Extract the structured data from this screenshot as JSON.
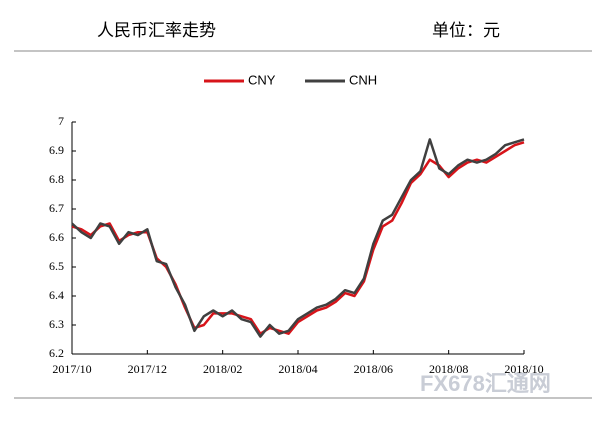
{
  "chart_data": {
    "type": "line",
    "title": "人民币汇率走势",
    "unit": "单位：元",
    "watermark": "FX678汇通网",
    "categories": [
      "2017/10",
      null,
      null,
      null,
      null,
      null,
      null,
      null,
      "2017/12",
      null,
      null,
      null,
      null,
      null,
      null,
      null,
      "2018/02",
      null,
      null,
      null,
      null,
      null,
      null,
      null,
      "2018/04",
      null,
      null,
      null,
      null,
      null,
      null,
      null,
      "2018/06",
      null,
      null,
      null,
      null,
      null,
      null,
      null,
      "2018/08",
      null,
      null,
      null,
      null,
      null,
      null,
      null,
      "2018/10"
    ],
    "series": [
      {
        "name": "CNY",
        "color": "#d7141a",
        "values": [
          6.64,
          6.63,
          6.61,
          6.64,
          6.65,
          6.59,
          6.61,
          6.62,
          6.62,
          6.53,
          6.5,
          6.44,
          6.36,
          6.29,
          6.3,
          6.34,
          6.34,
          6.34,
          6.33,
          6.32,
          6.27,
          6.29,
          6.28,
          6.27,
          6.31,
          6.33,
          6.35,
          6.36,
          6.38,
          6.41,
          6.4,
          6.45,
          6.56,
          6.64,
          6.66,
          6.72,
          6.79,
          6.82,
          6.87,
          6.85,
          6.81,
          6.84,
          6.86,
          6.87,
          6.86,
          6.88,
          6.9,
          6.92,
          6.93
        ]
      },
      {
        "name": "CNH",
        "color": "#404040",
        "values": [
          6.65,
          6.62,
          6.6,
          6.65,
          6.64,
          6.58,
          6.62,
          6.61,
          6.63,
          6.52,
          6.51,
          6.43,
          6.37,
          6.28,
          6.33,
          6.35,
          6.33,
          6.35,
          6.32,
          6.31,
          6.26,
          6.3,
          6.27,
          6.28,
          6.32,
          6.34,
          6.36,
          6.37,
          6.39,
          6.42,
          6.41,
          6.46,
          6.58,
          6.66,
          6.68,
          6.74,
          6.8,
          6.83,
          6.94,
          6.84,
          6.82,
          6.85,
          6.87,
          6.86,
          6.87,
          6.89,
          6.92,
          6.93,
          6.94
        ]
      }
    ],
    "ylim": [
      6.2,
      7
    ],
    "yticks": [
      6.2,
      6.3,
      6.4,
      6.5,
      6.6,
      6.7,
      6.8,
      6.9,
      7
    ],
    "grid": false
  }
}
